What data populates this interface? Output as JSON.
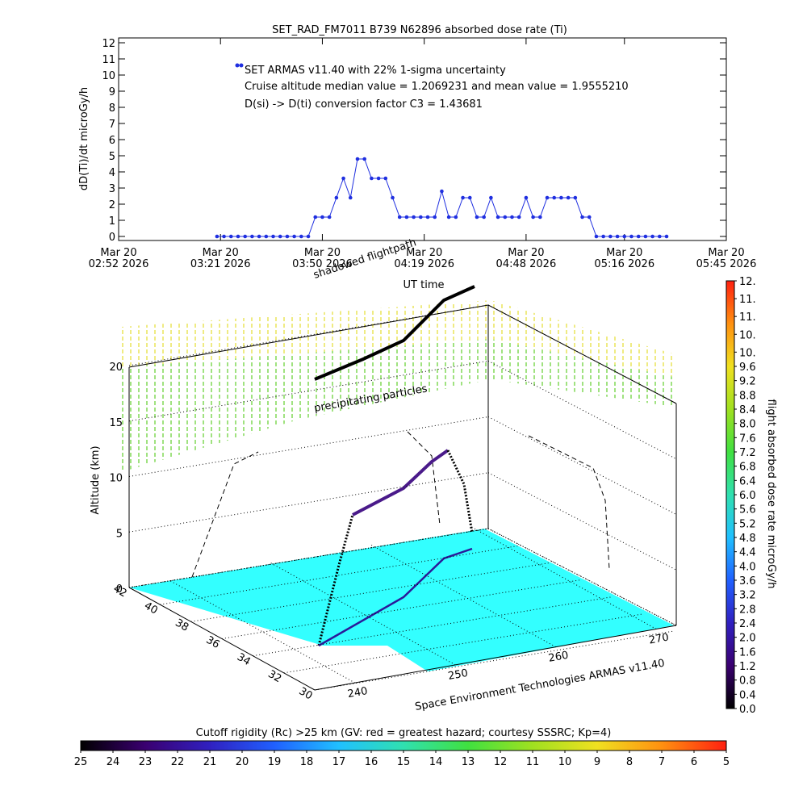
{
  "chart_data": [
    {
      "type": "line",
      "title": "SET_RAD_FM7011   B739 N62896 absorbed dose rate (Ti)",
      "y_label": "dD(Ti)/dt microGy/h",
      "x_label": "UT time",
      "annotations": [
        "Cruise altitude median value = 1.2069231 and mean value = 1.9555210",
        "D(si) -> D(ti) conversion factor C3 = 1.43681"
      ],
      "x": [
        "2026-03-20T03:20",
        "2026-03-20T03:22",
        "2026-03-20T03:24",
        "2026-03-20T03:26",
        "2026-03-20T03:28",
        "2026-03-20T03:30",
        "2026-03-20T03:32",
        "2026-03-20T03:34",
        "2026-03-20T03:36",
        "2026-03-20T03:38",
        "2026-03-20T03:40",
        "2026-03-20T03:42",
        "2026-03-20T03:44",
        "2026-03-20T03:46",
        "2026-03-20T03:48",
        "2026-03-20T03:50",
        "2026-03-20T03:52",
        "2026-03-20T03:54",
        "2026-03-20T03:56",
        "2026-03-20T03:58",
        "2026-03-20T04:00",
        "2026-03-20T04:02",
        "2026-03-20T04:04",
        "2026-03-20T04:06",
        "2026-03-20T04:08",
        "2026-03-20T04:10",
        "2026-03-20T04:12",
        "2026-03-20T04:14",
        "2026-03-20T04:16",
        "2026-03-20T04:18",
        "2026-03-20T04:20",
        "2026-03-20T04:22",
        "2026-03-20T04:24",
        "2026-03-20T04:26",
        "2026-03-20T04:28",
        "2026-03-20T04:30",
        "2026-03-20T04:32",
        "2026-03-20T04:34",
        "2026-03-20T04:36",
        "2026-03-20T04:38",
        "2026-03-20T04:40",
        "2026-03-20T04:42",
        "2026-03-20T04:44",
        "2026-03-20T04:46",
        "2026-03-20T04:48",
        "2026-03-20T04:50",
        "2026-03-20T04:52",
        "2026-03-20T04:54",
        "2026-03-20T04:56",
        "2026-03-20T04:58",
        "2026-03-20T05:00",
        "2026-03-20T05:02",
        "2026-03-20T05:04",
        "2026-03-20T05:06",
        "2026-03-20T05:08",
        "2026-03-20T05:10",
        "2026-03-20T05:12",
        "2026-03-20T05:14",
        "2026-03-20T05:16",
        "2026-03-20T05:18",
        "2026-03-20T05:20",
        "2026-03-20T05:22",
        "2026-03-20T05:24",
        "2026-03-20T05:26",
        "2026-03-20T05:28"
      ],
      "series": [
        {
          "name": "SET ARMAS v11.40 with 22% 1-sigma uncertainty",
          "color": "#1f2fe0",
          "values": [
            0,
            0,
            0,
            0,
            0,
            0,
            0,
            0,
            0,
            0,
            0,
            0,
            0,
            0,
            1.2,
            1.2,
            1.2,
            2.4,
            3.6,
            2.4,
            4.8,
            4.8,
            3.6,
            3.6,
            3.6,
            2.4,
            1.2,
            1.2,
            1.2,
            1.2,
            1.2,
            1.2,
            2.8,
            1.2,
            1.2,
            2.4,
            2.4,
            1.2,
            1.2,
            2.4,
            1.2,
            1.2,
            1.2,
            1.2,
            2.4,
            1.2,
            1.2,
            2.4,
            2.4,
            2.4,
            2.4,
            2.4,
            1.2,
            1.2,
            0,
            0,
            0,
            0,
            0,
            0,
            0,
            0,
            0,
            0,
            0
          ]
        }
      ],
      "xlim": [
        "2026-03-20T02:52",
        "2026-03-20T05:45"
      ],
      "xticks": [
        {
          "value": "2026-03-20T02:52",
          "label": [
            "Mar 20",
            "02:52 2026"
          ]
        },
        {
          "value": "2026-03-20T03:21",
          "label": [
            "Mar 20",
            "03:21 2026"
          ]
        },
        {
          "value": "2026-03-20T03:50",
          "label": [
            "Mar 20",
            "03:50 2026"
          ]
        },
        {
          "value": "2026-03-20T04:19",
          "label": [
            "Mar 20",
            "04:19 2026"
          ]
        },
        {
          "value": "2026-03-20T04:48",
          "label": [
            "Mar 20",
            "04:48 2026"
          ]
        },
        {
          "value": "2026-03-20T05:16",
          "label": [
            "Mar 20",
            "05:16 2026"
          ]
        },
        {
          "value": "2026-03-20T05:45",
          "label": [
            "Mar 20",
            "05:45 2026"
          ]
        }
      ],
      "ylim": [
        -0.25,
        12.3
      ],
      "yticks": [
        0,
        1,
        2,
        3,
        4,
        5,
        6,
        7,
        8,
        9,
        10,
        11,
        12
      ]
    },
    {
      "type": "surface3d",
      "subtitle": "shadowed flightpath",
      "annotations": [
        "precipitating particles"
      ],
      "credit": "Space Environment Technologies ARMAS v11.40",
      "z_label": "Altitude (km)",
      "zlim": [
        0,
        20
      ],
      "zticks": [
        0,
        5,
        10,
        15,
        20
      ],
      "latlim": [
        42,
        30
      ],
      "lat_ticks": [
        42,
        40,
        38,
        36,
        34,
        32,
        30
      ],
      "lonlim": [
        236,
        272
      ],
      "lon_ticks": [
        240,
        250,
        260,
        270
      ],
      "ground_color": "#33ffff"
    },
    {
      "type": "colorbar",
      "orientation": "vertical",
      "label": "flight absorbed dose rate microGy/h",
      "lim": [
        0,
        12
      ],
      "ticks": [
        {
          "value": 0,
          "label": "0.0"
        },
        0.4,
        0.8,
        1.2,
        1.6,
        {
          "value": 2,
          "label": "2.0"
        },
        2.4,
        2.8,
        3.2,
        3.6,
        {
          "value": 4,
          "label": "4.0"
        },
        4.4,
        4.8,
        5.2,
        5.6,
        {
          "value": 6,
          "label": "6.0"
        },
        6.4,
        6.8,
        7.2,
        7.6,
        {
          "value": 8,
          "label": "8.0"
        },
        8.4,
        8.8,
        9.2,
        9.6,
        {
          "value": 10,
          "label": "10."
        },
        {
          "value": 10.5,
          "label": "10."
        },
        {
          "value": 11,
          "label": "11."
        },
        {
          "value": 11.5,
          "label": "11."
        },
        {
          "value": 12,
          "label": "12."
        }
      ],
      "colors": [
        "#000000",
        "#3a0070",
        "#3020c0",
        "#2060ff",
        "#20c0ff",
        "#30e0b0",
        "#40e040",
        "#a0e020",
        "#f0e020",
        "#ff9010",
        "#ff2010"
      ]
    },
    {
      "type": "colorbar",
      "orientation": "horizontal",
      "label": "Cutoff rigidity (Rc) >25 km (GV: red = greatest hazard; courtesy SSSRC; Kp=4)",
      "lim": [
        25,
        5
      ],
      "ticks": [
        25,
        24,
        23,
        22,
        21,
        20,
        19,
        18,
        17,
        16,
        15,
        14,
        13,
        12,
        11,
        10,
        9,
        8,
        7,
        6,
        5
      ],
      "colors": [
        "#000000",
        "#3a0070",
        "#3020c0",
        "#2060ff",
        "#20c0ff",
        "#30e0b0",
        "#40e040",
        "#a0e020",
        "#f0e020",
        "#ff9010",
        "#ff2010"
      ]
    }
  ]
}
